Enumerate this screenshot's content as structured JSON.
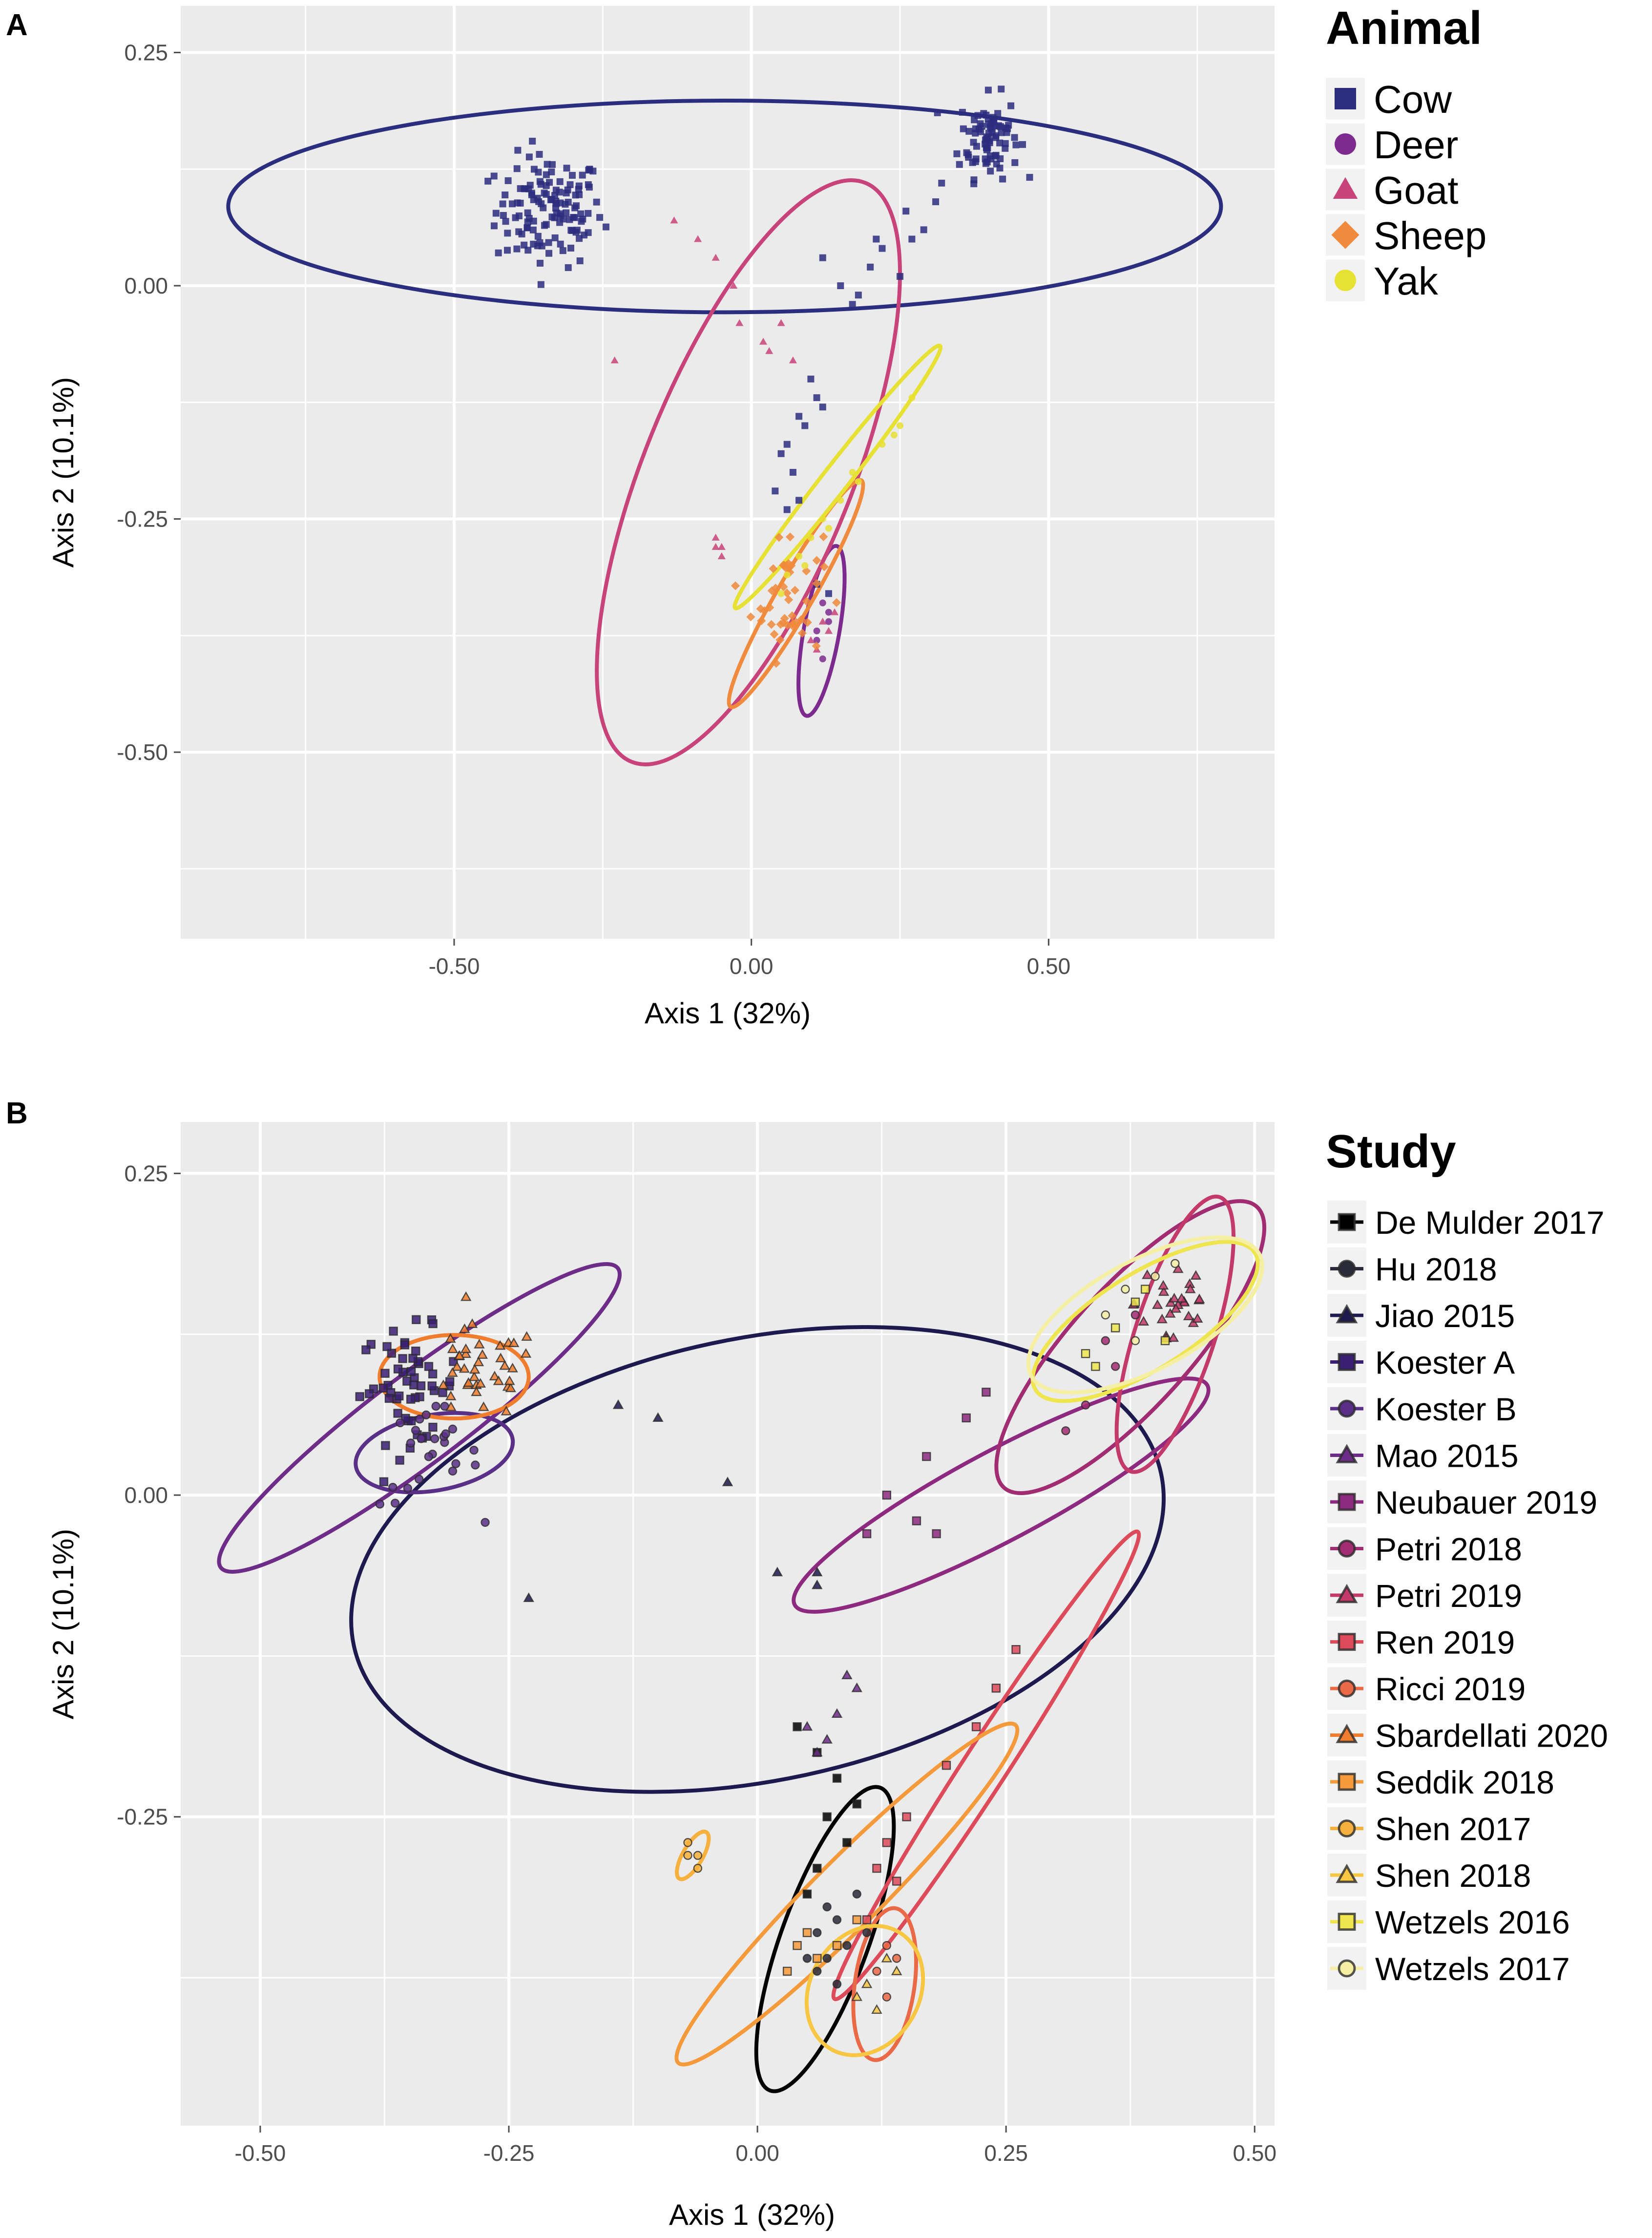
{
  "chart_data": [
    {
      "panel": "A",
      "type": "scatter",
      "xlabel": "Axis 1 (32%)",
      "ylabel": "Axis 2 (10.1%)",
      "xlim": [
        -0.96,
        0.88
      ],
      "ylim": [
        -0.7,
        0.3
      ],
      "xticks": [
        -0.5,
        0.0,
        0.5
      ],
      "xtick_labels": [
        "-0.50",
        "0.00",
        "0.50"
      ],
      "yticks": [
        0.25,
        0.0,
        -0.25,
        -0.5
      ],
      "ytick_labels": [
        "0.25",
        "0.00",
        "-0.25",
        "-0.50"
      ],
      "grid": true,
      "legend_title": "Animal",
      "legend_position": "right",
      "series": [
        {
          "name": "Cow",
          "color": "#2b2d7e",
          "shape": "square",
          "ellipse": {
            "cx": -0.045,
            "cy": 0.085,
            "rx": 0.835,
            "ry": 0.178,
            "angle": 0
          },
          "clusters": [
            {
              "cx": -0.34,
              "cy": 0.08,
              "sx": 0.045,
              "sy": 0.03,
              "n": 130
            },
            {
              "cx": 0.4,
              "cy": 0.16,
              "sx": 0.025,
              "sy": 0.022,
              "n": 80
            }
          ],
          "points": [
            [
              0.32,
              0.11
            ],
            [
              0.35,
              0.13
            ],
            [
              0.29,
              0.06
            ],
            [
              0.26,
              0.08
            ],
            [
              0.22,
              0.04
            ],
            [
              0.25,
              0.01
            ],
            [
              0.2,
              0.02
            ],
            [
              0.18,
              -0.01
            ],
            [
              0.15,
              0.0
            ],
            [
              0.12,
              0.03
            ],
            [
              0.17,
              -0.02
            ],
            [
              0.21,
              0.05
            ],
            [
              0.31,
              0.09
            ],
            [
              0.27,
              0.05
            ],
            [
              0.11,
              -0.12
            ],
            [
              0.08,
              -0.14
            ],
            [
              0.06,
              -0.17
            ],
            [
              0.05,
              -0.18
            ],
            [
              0.09,
              -0.15
            ],
            [
              0.07,
              -0.2
            ],
            [
              0.12,
              -0.13
            ],
            [
              0.1,
              -0.1
            ],
            [
              0.04,
              -0.22
            ],
            [
              0.06,
              -0.24
            ],
            [
              0.08,
              -0.23
            ],
            [
              0.11,
              -0.32
            ],
            [
              0.13,
              -0.33
            ]
          ]
        },
        {
          "name": "Deer",
          "color": "#7d2a8e",
          "shape": "circle",
          "ellipse": {
            "cx": 0.118,
            "cy": -0.37,
            "rx": 0.145,
            "ry": 0.03,
            "angle": -80
          },
          "points": [
            [
              0.12,
              -0.34
            ],
            [
              0.13,
              -0.36
            ],
            [
              0.11,
              -0.38
            ],
            [
              0.12,
              -0.4
            ],
            [
              0.13,
              -0.35
            ],
            [
              0.11,
              -0.37
            ]
          ]
        },
        {
          "name": "Goat",
          "color": "#c8437a",
          "shape": "triangle",
          "ellipse": {
            "cx": -0.005,
            "cy": -0.2,
            "rx": 0.525,
            "ry": 0.175,
            "angle": -68
          },
          "points": [
            [
              -0.13,
              0.07
            ],
            [
              -0.09,
              0.05
            ],
            [
              -0.03,
              0.0
            ],
            [
              -0.06,
              0.03
            ],
            [
              -0.23,
              -0.08
            ],
            [
              -0.02,
              -0.04
            ],
            [
              0.02,
              -0.06
            ],
            [
              0.05,
              -0.04
            ],
            [
              0.03,
              -0.07
            ],
            [
              0.07,
              -0.08
            ],
            [
              -0.06,
              -0.27
            ],
            [
              -0.05,
              -0.28
            ],
            [
              -0.05,
              -0.29
            ],
            [
              -0.06,
              -0.28
            ],
            [
              0.14,
              -0.35
            ],
            [
              0.12,
              -0.36
            ],
            [
              0.1,
              -0.38
            ],
            [
              0.11,
              -0.39
            ],
            [
              0.13,
              -0.37
            ]
          ]
        },
        {
          "name": "Sheep",
          "color": "#f08a3c",
          "shape": "diamond",
          "ellipse": {
            "cx": 0.075,
            "cy": -0.33,
            "rx": 0.22,
            "ry": 0.03,
            "angle": -60
          },
          "clusters": [
            {
              "cx": 0.06,
              "cy": -0.33,
              "sx": 0.03,
              "sy": 0.035,
              "n": 45
            }
          ]
        },
        {
          "name": "Yak",
          "color": "#e7e133",
          "shape": "circle",
          "ellipse": {
            "cx": 0.145,
            "cy": -0.205,
            "rx": 0.28,
            "ry": 0.022,
            "angle": -52
          },
          "points": [
            [
              0.27,
              -0.12
            ],
            [
              0.25,
              -0.15
            ],
            [
              0.22,
              -0.17
            ],
            [
              0.18,
              -0.21
            ],
            [
              0.15,
              -0.23
            ],
            [
              0.13,
              -0.26
            ],
            [
              0.1,
              -0.27
            ],
            [
              0.08,
              -0.29
            ],
            [
              0.06,
              -0.31
            ],
            [
              0.05,
              -0.33
            ],
            [
              0.12,
              -0.25
            ],
            [
              0.17,
              -0.2
            ],
            [
              0.24,
              -0.16
            ],
            [
              0.09,
              -0.3
            ]
          ]
        }
      ]
    },
    {
      "panel": "B",
      "type": "scatter",
      "xlabel": "Axis 1 (32%)",
      "ylabel": "Axis 2 (10.1%)",
      "xlim": [
        -0.58,
        0.52
      ],
      "ylim": [
        -0.49,
        0.29
      ],
      "xticks": [
        -0.5,
        -0.25,
        0.0,
        0.25,
        0.5
      ],
      "xtick_labels": [
        "-0.50",
        "-0.25",
        "0.00",
        "0.25",
        "0.50"
      ],
      "yticks": [
        0.25,
        0.0,
        -0.25
      ],
      "ytick_labels": [
        "0.25",
        "0.00",
        "-0.25"
      ],
      "grid": true,
      "legend_title": "Study",
      "legend_position": "right",
      "series": [
        {
          "name": "De Mulder 2017",
          "color": "#000000",
          "shape": "square",
          "ellipse": {
            "cx": 0.068,
            "cy": -0.345,
            "rx": 0.162,
            "ry": 0.044,
            "angle": -70
          },
          "points": [
            [
              0.04,
              -0.18
            ],
            [
              0.06,
              -0.2
            ],
            [
              0.08,
              -0.22
            ],
            [
              0.07,
              -0.25
            ],
            [
              0.1,
              -0.24
            ],
            [
              0.06,
              -0.29
            ],
            [
              0.09,
              -0.27
            ],
            [
              0.05,
              -0.31
            ]
          ]
        },
        {
          "name": "Hu 2018",
          "color": "#2a2a3a",
          "shape": "circle",
          "points": [
            [
              0.06,
              -0.34
            ],
            [
              0.07,
              -0.36
            ],
            [
              0.08,
              -0.33
            ],
            [
              0.1,
              -0.31
            ],
            [
              0.06,
              -0.37
            ],
            [
              0.09,
              -0.35
            ],
            [
              0.08,
              -0.38
            ],
            [
              0.05,
              -0.36
            ],
            [
              0.11,
              -0.34
            ],
            [
              0.07,
              -0.32
            ]
          ]
        },
        {
          "name": "Jiao 2015",
          "color": "#1e1a4f",
          "shape": "triangle",
          "ellipse": {
            "cx": 0.0,
            "cy": -0.05,
            "rx": 0.415,
            "ry": 0.222,
            "angle": -12
          },
          "points": [
            [
              -0.14,
              0.07
            ],
            [
              -0.1,
              0.06
            ],
            [
              -0.03,
              0.01
            ],
            [
              -0.23,
              -0.08
            ],
            [
              0.02,
              -0.06
            ],
            [
              0.06,
              -0.06
            ],
            [
              0.06,
              -0.07
            ]
          ]
        },
        {
          "name": "Koester A",
          "color": "#3a1f74",
          "shape": "square",
          "clusters": [
            {
              "cx": -0.35,
              "cy": 0.085,
              "sx": 0.025,
              "sy": 0.022,
              "n": 55
            }
          ]
        },
        {
          "name": "Koester B",
          "color": "#5a2f87",
          "shape": "circle",
          "ellipse": {
            "cx": -0.325,
            "cy": 0.033,
            "rx": 0.08,
            "ry": 0.038,
            "angle": -10
          },
          "clusters": [
            {
              "cx": -0.33,
              "cy": 0.03,
              "sx": 0.025,
              "sy": 0.02,
              "n": 25
            }
          ]
        },
        {
          "name": "Mao 2015",
          "color": "#6e2c89",
          "shape": "triangle",
          "ellipse": {
            "cx": -0.34,
            "cy": 0.06,
            "rx": 0.25,
            "ry": 0.045,
            "angle": -37
          },
          "points": [
            [
              0.09,
              -0.14
            ],
            [
              0.1,
              -0.15
            ],
            [
              0.08,
              -0.17
            ],
            [
              0.06,
              -0.2
            ],
            [
              0.07,
              -0.19
            ],
            [
              0.05,
              -0.18
            ]
          ]
        },
        {
          "name": "Neubauer 2019",
          "color": "#8d2a80",
          "shape": "square",
          "ellipse": {
            "cx": 0.245,
            "cy": 0.0,
            "rx": 0.235,
            "ry": 0.045,
            "angle": -28
          },
          "points": [
            [
              0.17,
              0.03
            ],
            [
              0.13,
              0.0
            ],
            [
              0.16,
              -0.02
            ],
            [
              0.18,
              -0.03
            ],
            [
              0.21,
              0.06
            ],
            [
              0.23,
              0.08
            ],
            [
              0.11,
              -0.03
            ]
          ]
        },
        {
          "name": "Petri 2018",
          "color": "#a12c72",
          "shape": "circle",
          "ellipse": {
            "cx": 0.375,
            "cy": 0.115,
            "rx": 0.19,
            "ry": 0.06,
            "angle": -48
          },
          "points": [
            [
              0.35,
              0.12
            ],
            [
              0.38,
              0.14
            ],
            [
              0.33,
              0.07
            ],
            [
              0.31,
              0.05
            ],
            [
              0.36,
              0.1
            ]
          ]
        },
        {
          "name": "Petri 2019",
          "color": "#c2396a",
          "shape": "triangle",
          "ellipse": {
            "cx": 0.42,
            "cy": 0.125,
            "rx": 0.145,
            "ry": 0.04,
            "angle": -72
          },
          "clusters": [
            {
              "cx": 0.42,
              "cy": 0.15,
              "sx": 0.02,
              "sy": 0.025,
              "n": 28
            }
          ]
        },
        {
          "name": "Ren 2019",
          "color": "#dd4a5a",
          "shape": "square",
          "ellipse": {
            "cx": 0.23,
            "cy": -0.21,
            "rx": 0.28,
            "ry": 0.022,
            "angle": -57
          },
          "points": [
            [
              0.26,
              -0.12
            ],
            [
              0.24,
              -0.15
            ],
            [
              0.22,
              -0.18
            ],
            [
              0.19,
              -0.21
            ],
            [
              0.15,
              -0.25
            ],
            [
              0.13,
              -0.27
            ],
            [
              0.12,
              -0.29
            ],
            [
              0.14,
              -0.3
            ],
            [
              0.11,
              -0.33
            ]
          ]
        },
        {
          "name": "Ricci 2019",
          "color": "#ea6a47",
          "shape": "circle",
          "ellipse": {
            "cx": 0.128,
            "cy": -0.38,
            "rx": 0.077,
            "ry": 0.03,
            "angle": -82
          },
          "points": [
            [
              0.13,
              -0.35
            ],
            [
              0.12,
              -0.37
            ],
            [
              0.14,
              -0.36
            ],
            [
              0.13,
              -0.39
            ]
          ]
        },
        {
          "name": "Sbardellati 2020",
          "color": "#f07c2e",
          "shape": "triangle",
          "ellipse": {
            "cx": -0.305,
            "cy": 0.092,
            "rx": 0.075,
            "ry": 0.042,
            "angle": 0
          },
          "clusters": [
            {
              "cx": -0.28,
              "cy": 0.095,
              "sx": 0.03,
              "sy": 0.018,
              "n": 40
            }
          ]
        },
        {
          "name": "Seddik 2018",
          "color": "#f59a3b",
          "shape": "square",
          "ellipse": {
            "cx": 0.09,
            "cy": -0.31,
            "rx": 0.24,
            "ry": 0.034,
            "angle": -45
          },
          "points": [
            [
              0.04,
              -0.35
            ],
            [
              0.05,
              -0.34
            ],
            [
              0.06,
              -0.36
            ],
            [
              0.03,
              -0.37
            ],
            [
              0.08,
              -0.35
            ],
            [
              0.1,
              -0.33
            ]
          ]
        },
        {
          "name": "Shen 2017",
          "color": "#f6b03d",
          "shape": "circle",
          "ellipse": {
            "cx": -0.065,
            "cy": -0.28,
            "rx": 0.027,
            "ry": 0.01,
            "angle": -60
          },
          "points": [
            [
              -0.07,
              -0.27
            ],
            [
              -0.06,
              -0.28
            ],
            [
              -0.06,
              -0.29
            ],
            [
              -0.07,
              -0.28
            ]
          ]
        },
        {
          "name": "Shen 2018",
          "color": "#f7c744",
          "shape": "triangle",
          "ellipse": {
            "cx": 0.108,
            "cy": -0.385,
            "rx": 0.068,
            "ry": 0.055,
            "angle": -60
          },
          "points": [
            [
              0.13,
              -0.36
            ],
            [
              0.11,
              -0.38
            ],
            [
              0.1,
              -0.39
            ],
            [
              0.12,
              -0.4
            ],
            [
              0.14,
              -0.37
            ]
          ]
        },
        {
          "name": "Wetzels 2016",
          "color": "#efe54f",
          "shape": "square",
          "ellipse": {
            "cx": 0.39,
            "cy": 0.135,
            "rx": 0.13,
            "ry": 0.048,
            "angle": -32
          },
          "points": [
            [
              0.38,
              0.15
            ],
            [
              0.36,
              0.13
            ],
            [
              0.34,
              0.1
            ],
            [
              0.39,
              0.16
            ],
            [
              0.41,
              0.12
            ],
            [
              0.33,
              0.11
            ]
          ]
        },
        {
          "name": "Wetzels 2017",
          "color": "#f5efa4",
          "shape": "circle",
          "ellipse": {
            "cx": 0.39,
            "cy": 0.14,
            "rx": 0.13,
            "ry": 0.055,
            "angle": -28
          },
          "points": [
            [
              0.4,
              0.17
            ],
            [
              0.37,
              0.16
            ],
            [
              0.35,
              0.14
            ],
            [
              0.42,
              0.18
            ],
            [
              0.38,
              0.12
            ]
          ]
        }
      ]
    }
  ]
}
